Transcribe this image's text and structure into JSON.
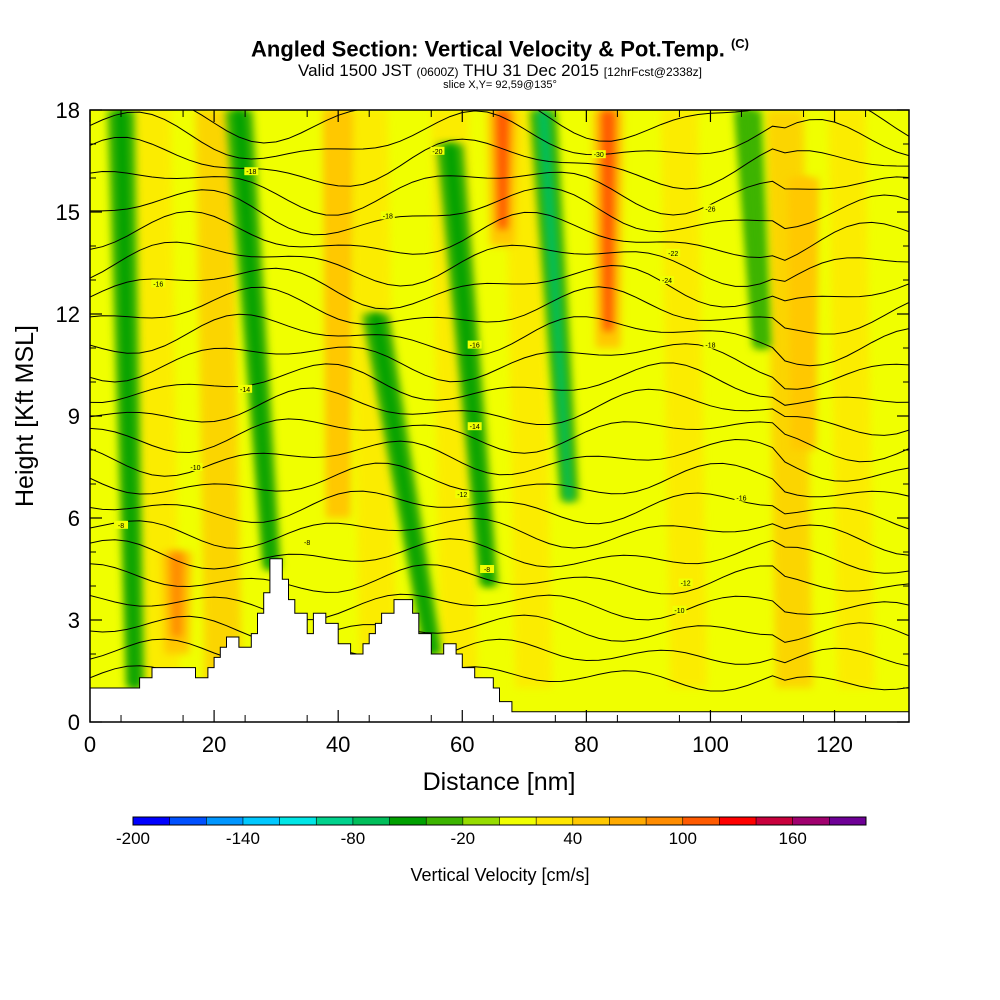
{
  "header": {
    "title": "Angled Section: Vertical Velocity & Pot.Temp.",
    "title_tag": "(C)",
    "valid_prefix": "Valid 1500 JST",
    "valid_utc": "(0600Z)",
    "valid_date": "THU 31 Dec 2015",
    "forecast": "[12hrFcst@2338z]",
    "slice": "slice X,Y= 92,59@135°"
  },
  "chart_data": {
    "type": "heatmap",
    "title": "Angled Section: Vertical Velocity & Pot.Temp.",
    "xlabel": "Distance [nm]",
    "ylabel": "Height [Kft MSL]",
    "xlim": [
      0,
      132
    ],
    "ylim": [
      0,
      18
    ],
    "x_ticks": [
      0,
      20,
      40,
      60,
      80,
      100,
      120
    ],
    "y_ticks": [
      0,
      3,
      6,
      9,
      12,
      15,
      18
    ],
    "colorbar": {
      "title": "Vertical Velocity [cm/s]",
      "levels": [
        -200,
        -180,
        -160,
        -140,
        -120,
        -100,
        -80,
        -60,
        -40,
        -20,
        0,
        20,
        40,
        60,
        80,
        100,
        120,
        140,
        160,
        180
      ],
      "labels": [
        -200,
        -140,
        -80,
        -20,
        40,
        100,
        160
      ],
      "colors": [
        "#0000ff",
        "#0050ff",
        "#0096ff",
        "#00c8ff",
        "#00e6e6",
        "#00d28c",
        "#00be5a",
        "#00a000",
        "#3cb400",
        "#96dc00",
        "#f0ff00",
        "#ffe600",
        "#ffc800",
        "#ffaa00",
        "#ff8c00",
        "#ff5a00",
        "#ff0000",
        "#c8003c",
        "#a0006e",
        "#6e0096"
      ]
    },
    "updrafts": [
      {
        "x": 14,
        "z0": 2,
        "z1": 5,
        "w": 90
      },
      {
        "x": 66.5,
        "z0": 14,
        "z1": 18,
        "w": 100
      },
      {
        "x": 83.5,
        "z0": 11,
        "z1": 18,
        "w": 100
      },
      {
        "x": 40,
        "z0": 6,
        "z1": 18,
        "w": 40
      },
      {
        "x": 115,
        "z0": 8,
        "z1": 16,
        "w": 40
      }
    ],
    "downdrafts": [
      {
        "x": 7,
        "x_top": 5,
        "z0": 1,
        "z1": 18,
        "w": -50
      },
      {
        "x": 29,
        "x_top": 24,
        "z0": 4.5,
        "z1": 18,
        "w": -50
      },
      {
        "x": 55,
        "x_top": 46,
        "z0": 2,
        "z1": 12,
        "w": -45
      },
      {
        "x": 64,
        "x_top": 58,
        "z0": 4,
        "z1": 17,
        "w": -55
      },
      {
        "x": 77,
        "x_top": 73,
        "z0": 6.5,
        "z1": 18,
        "w": -80
      },
      {
        "x": 108,
        "x_top": 106,
        "z0": 11,
        "z1": 18,
        "w": -30
      }
    ],
    "isentrope_labels": [
      "-8",
      "-10",
      "-12",
      "-14",
      "-16",
      "-18",
      "-20",
      "-22",
      "-24",
      "-26",
      "-28",
      "-30",
      "-32",
      "-34"
    ],
    "terrain": [
      [
        0,
        1
      ],
      [
        8,
        1
      ],
      [
        8,
        1.3
      ],
      [
        10,
        1.3
      ],
      [
        10,
        1.6
      ],
      [
        17,
        1.6
      ],
      [
        17,
        1.3
      ],
      [
        19,
        1.3
      ],
      [
        19,
        1.6
      ],
      [
        20,
        1.6
      ],
      [
        20,
        1.9
      ],
      [
        21,
        1.9
      ],
      [
        21,
        2.2
      ],
      [
        22,
        2.2
      ],
      [
        22,
        2.5
      ],
      [
        24,
        2.5
      ],
      [
        24,
        2.2
      ],
      [
        26,
        2.2
      ],
      [
        26,
        2.6
      ],
      [
        27,
        2.6
      ],
      [
        27,
        3.2
      ],
      [
        28,
        3.2
      ],
      [
        28,
        3.8
      ],
      [
        29,
        3.8
      ],
      [
        29,
        4.8
      ],
      [
        31,
        4.8
      ],
      [
        31,
        4.2
      ],
      [
        32,
        4.2
      ],
      [
        32,
        3.6
      ],
      [
        33,
        3.6
      ],
      [
        33,
        3.2
      ],
      [
        35,
        3.2
      ],
      [
        35,
        2.6
      ],
      [
        36,
        2.6
      ],
      [
        36,
        3.2
      ],
      [
        38,
        3.2
      ],
      [
        38,
        2.9
      ],
      [
        40,
        2.9
      ],
      [
        40,
        2.3
      ],
      [
        42,
        2.3
      ],
      [
        42,
        2.0
      ],
      [
        44,
        2.0
      ],
      [
        44,
        2.3
      ],
      [
        45,
        2.3
      ],
      [
        45,
        2.6
      ],
      [
        46,
        2.6
      ],
      [
        46,
        2.9
      ],
      [
        47,
        2.9
      ],
      [
        47,
        3.2
      ],
      [
        49,
        3.2
      ],
      [
        49,
        3.6
      ],
      [
        52,
        3.6
      ],
      [
        52,
        3.2
      ],
      [
        53,
        3.2
      ],
      [
        53,
        2.6
      ],
      [
        55,
        2.6
      ],
      [
        55,
        2.0
      ],
      [
        57,
        2.0
      ],
      [
        57,
        2.3
      ],
      [
        59,
        2.3
      ],
      [
        59,
        2.0
      ],
      [
        60,
        2.0
      ],
      [
        60,
        1.6
      ],
      [
        62,
        1.6
      ],
      [
        62,
        1.3
      ],
      [
        65,
        1.3
      ],
      [
        65,
        1.0
      ],
      [
        66,
        1.0
      ],
      [
        66,
        0.6
      ],
      [
        68,
        0.6
      ],
      [
        68,
        0.3
      ],
      [
        132,
        0.3
      ],
      [
        132,
        0
      ],
      [
        0,
        0
      ]
    ]
  },
  "legend_placement": "bottom"
}
